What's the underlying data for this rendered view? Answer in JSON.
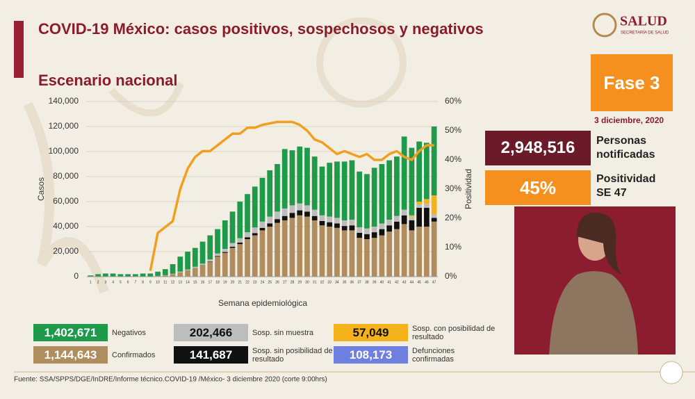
{
  "header": {
    "title": "COVID-19 México: casos positivos, sospechosos y negativos",
    "subtitle": "Escenario nacional",
    "logo": "SALUD",
    "logo_sub": "SECRETARÍA DE SALUD"
  },
  "side": {
    "phase": "Fase 3",
    "date": "3 diciembre, 2020",
    "notified_value": "2,948,516",
    "notified_label": "Personas notificadas",
    "positivity_value": "45%",
    "positivity_label": "Positividad SE 47"
  },
  "other_totals": [
    {
      "name": "Defunciones confirmadas",
      "color": "#6f7fe0",
      "total": "108,173"
    }
  ],
  "footer": "Fuente: SSA/SPPS/DGE/InDRE/Informe técnico.COVID-19 /México- 3 diciembre 2020 (corte 9:00hrs)",
  "chart_data": {
    "type": "bar",
    "stacked": true,
    "x_label": "Semana epidemiológica",
    "y_label": "Casos",
    "y2_label": "Positividad",
    "categories": [
      "1",
      "2",
      "3",
      "4",
      "5",
      "6",
      "7",
      "8",
      "9",
      "10",
      "11",
      "12",
      "13",
      "14",
      "15",
      "16",
      "17",
      "18",
      "19",
      "20",
      "21",
      "22",
      "23",
      "24",
      "25",
      "26",
      "27",
      "28",
      "29",
      "30",
      "31",
      "32",
      "33",
      "34",
      "35",
      "36",
      "37",
      "38",
      "39",
      "40",
      "41",
      "42",
      "43",
      "44",
      "45",
      "46",
      "47"
    ],
    "ylim": [
      0,
      140000
    ],
    "yticks": [
      0,
      {
        "value": 20000,
        "label": "20,000"
      },
      {
        "value": 40000,
        "label": "40,000"
      },
      {
        "value": 60000,
        "label": "60,000"
      },
      {
        "value": 80000,
        "label": "80,000"
      },
      {
        "value": 100000,
        "label": "100,000"
      },
      {
        "value": 120000,
        "label": "120,000"
      },
      {
        "value": 140000,
        "label": "140,000"
      }
    ],
    "y2lim": [
      0,
      60
    ],
    "y2ticks": [
      {
        "value": 0,
        "label": "0%"
      },
      {
        "value": 10,
        "label": "10%"
      },
      {
        "value": 20,
        "label": "20%"
      },
      {
        "value": 30,
        "label": "30%"
      },
      {
        "value": 40,
        "label": "40%"
      },
      {
        "value": 50,
        "label": "50%"
      },
      {
        "value": 60,
        "label": "60%"
      }
    ],
    "grid": true,
    "series": [
      {
        "name": "Confirmados",
        "color": "#b08d5e",
        "total": "1,144,643",
        "values": [
          0,
          0,
          0,
          0,
          0,
          0,
          0,
          0,
          0,
          500,
          1000,
          2000,
          3500,
          5000,
          7000,
          9000,
          12000,
          16000,
          19000,
          23000,
          26000,
          30000,
          33000,
          37000,
          40000,
          43000,
          45000,
          47000,
          49000,
          48000,
          45000,
          41000,
          40000,
          39000,
          37000,
          37000,
          31000,
          30000,
          31000,
          33000,
          36000,
          38000,
          42000,
          37000,
          40000,
          40000,
          44000
        ]
      },
      {
        "name": "Sosp. sin posibilidad de resultado",
        "color": "#111111",
        "total": "141,687",
        "values": [
          0,
          0,
          0,
          0,
          0,
          0,
          0,
          0,
          0,
          0,
          0,
          0,
          0,
          0,
          0,
          200,
          300,
          500,
          700,
          900,
          1200,
          1500,
          1800,
          2000,
          2500,
          3000,
          3500,
          4000,
          4000,
          4000,
          3500,
          3500,
          3500,
          3500,
          3500,
          4000,
          4000,
          4000,
          4500,
          5000,
          5000,
          6000,
          7000,
          8000,
          15000,
          15000,
          3000
        ]
      },
      {
        "name": "Sosp. sin muestra",
        "color": "#bdbdbd",
        "total": "202,466",
        "values": [
          0,
          0,
          0,
          0,
          0,
          0,
          0,
          0,
          0,
          100,
          200,
          300,
          500,
          700,
          900,
          1200,
          1500,
          2000,
          2500,
          3000,
          3500,
          4000,
          4500,
          5000,
          5500,
          6000,
          6000,
          6000,
          5500,
          5000,
          5000,
          4500,
          4500,
          4500,
          4500,
          4500,
          4500,
          4500,
          4500,
          4500,
          4500,
          4500,
          4500,
          3000,
          3000,
          3000,
          3000
        ]
      },
      {
        "name": "Sosp. con posibilidad de resultado",
        "color": "#f5b21b",
        "total": "57,049",
        "values": [
          0,
          0,
          0,
          0,
          0,
          0,
          0,
          0,
          0,
          0,
          0,
          0,
          0,
          0,
          0,
          0,
          0,
          0,
          0,
          0,
          0,
          0,
          0,
          0,
          0,
          0,
          0,
          0,
          0,
          0,
          0,
          0,
          0,
          0,
          0,
          0,
          0,
          0,
          0,
          0,
          0,
          0,
          0,
          1000,
          2000,
          4000,
          15000
        ]
      },
      {
        "name": "Negativos",
        "color": "#1e9a4a",
        "total": "1,402,671",
        "values": [
          1000,
          2000,
          2500,
          2500,
          2000,
          2000,
          2000,
          2500,
          2500,
          3400,
          4800,
          7700,
          12000,
          14300,
          15100,
          17600,
          19200,
          19500,
          22800,
          25100,
          29300,
          30500,
          32700,
          35000,
          37000,
          38000,
          47500,
          44000,
          45500,
          46000,
          42500,
          39000,
          43000,
          45000,
          47000,
          47500,
          44500,
          43500,
          47000,
          47500,
          47500,
          47500,
          58500,
          54000,
          48000,
          45000,
          55000
        ]
      },
      {
        "type": "line",
        "axis": "y2",
        "color": "#f0a01e",
        "values": [
          null,
          null,
          null,
          null,
          null,
          null,
          null,
          null,
          2,
          15,
          17,
          19,
          30,
          37,
          41,
          43,
          43,
          45,
          47,
          49,
          49,
          51,
          51,
          52,
          52.5,
          53,
          53,
          53,
          52,
          50,
          47,
          46,
          44,
          42,
          43,
          42,
          41,
          42,
          40,
          40,
          42,
          43,
          41,
          40,
          43,
          45,
          45
        ]
      }
    ]
  }
}
